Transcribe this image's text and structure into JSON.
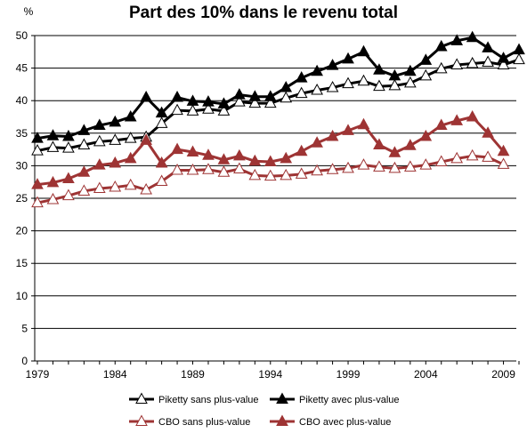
{
  "chart_data": {
    "type": "line",
    "title": "Part des 10% dans le revenu total",
    "y_unit_label": "%",
    "xlabel": "",
    "ylabel": "",
    "xlim": [
      1979,
      2010
    ],
    "ylim": [
      0,
      50
    ],
    "x_ticks": [
      1979,
      1984,
      1989,
      1994,
      1999,
      2004,
      2009
    ],
    "y_ticks": [
      0,
      5,
      10,
      15,
      20,
      25,
      30,
      35,
      40,
      45,
      50
    ],
    "grid": "horizontal",
    "legend_placement": "bottom",
    "series": [
      {
        "name": "Piketty sans plus-value",
        "color": "#000000",
        "marker": "open-triangle",
        "x": [
          1979,
          1980,
          1981,
          1982,
          1983,
          1984,
          1985,
          1986,
          1987,
          1988,
          1989,
          1990,
          1991,
          1992,
          1993,
          1994,
          1995,
          1996,
          1997,
          1998,
          1999,
          2000,
          2001,
          2002,
          2003,
          2004,
          2005,
          2006,
          2007,
          2008,
          2009,
          2010
        ],
        "values": [
          32.3,
          32.8,
          32.7,
          33.2,
          33.7,
          33.9,
          34.2,
          34.4,
          36.5,
          38.5,
          38.4,
          38.7,
          38.4,
          39.8,
          39.6,
          39.6,
          40.4,
          41.1,
          41.6,
          42.0,
          42.6,
          43.0,
          42.2,
          42.3,
          42.7,
          43.8,
          44.9,
          45.5,
          45.7,
          45.9,
          45.5,
          46.3
        ]
      },
      {
        "name": "Piketty avec plus-value",
        "color": "#000000",
        "marker": "filled-triangle",
        "x": [
          1979,
          1980,
          1981,
          1982,
          1983,
          1984,
          1985,
          1986,
          1987,
          1988,
          1989,
          1990,
          1991,
          1992,
          1993,
          1994,
          1995,
          1996,
          1997,
          1998,
          1999,
          2000,
          2001,
          2002,
          2003,
          2004,
          2005,
          2006,
          2007,
          2008,
          2009,
          2010
        ],
        "values": [
          34.2,
          34.6,
          34.5,
          35.4,
          36.2,
          36.7,
          37.5,
          40.5,
          38.1,
          40.5,
          39.9,
          39.8,
          39.5,
          40.9,
          40.6,
          40.6,
          42.0,
          43.5,
          44.5,
          45.4,
          46.4,
          47.5,
          44.7,
          43.8,
          44.5,
          46.2,
          48.3,
          49.2,
          49.7,
          48.1,
          46.5,
          47.8
        ]
      },
      {
        "name": "CBO sans plus-value",
        "color": "#9e3434",
        "marker": "open-triangle",
        "x": [
          1979,
          1980,
          1981,
          1982,
          1983,
          1984,
          1985,
          1986,
          1987,
          1988,
          1989,
          1990,
          1991,
          1992,
          1993,
          1994,
          1995,
          1996,
          1997,
          1998,
          1999,
          2000,
          2001,
          2002,
          2003,
          2004,
          2005,
          2006,
          2007,
          2008,
          2009
        ],
        "values": [
          24.3,
          24.8,
          25.4,
          26.1,
          26.5,
          26.7,
          27.0,
          26.3,
          27.6,
          29.3,
          29.3,
          29.4,
          29.0,
          29.5,
          28.5,
          28.4,
          28.5,
          28.7,
          29.2,
          29.4,
          29.6,
          30.1,
          29.8,
          29.6,
          29.8,
          30.1,
          30.6,
          31.1,
          31.5,
          31.3,
          30.2
        ]
      },
      {
        "name": "CBO avec plus-value",
        "color": "#9e3434",
        "marker": "filled-triangle",
        "x": [
          1979,
          1980,
          1981,
          1982,
          1983,
          1984,
          1985,
          1986,
          1987,
          1988,
          1989,
          1990,
          1991,
          1992,
          1993,
          1994,
          1995,
          1996,
          1997,
          1998,
          1999,
          2000,
          2001,
          2002,
          2003,
          2004,
          2005,
          2006,
          2007,
          2008,
          2009
        ],
        "values": [
          27.1,
          27.4,
          28.0,
          29.0,
          30.1,
          30.4,
          31.1,
          33.9,
          30.4,
          32.5,
          32.1,
          31.6,
          30.9,
          31.5,
          30.7,
          30.6,
          31.1,
          32.2,
          33.5,
          34.5,
          35.4,
          36.3,
          33.2,
          32.0,
          33.1,
          34.5,
          36.2,
          36.9,
          37.5,
          35.0,
          32.2
        ]
      }
    ]
  }
}
